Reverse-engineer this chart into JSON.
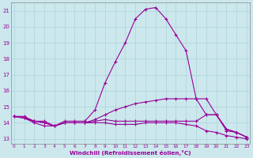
{
  "xlabel": "Windchill (Refroidissement éolien,°C)",
  "background_color": "#cce8ed",
  "grid_color": "#aad4db",
  "line_color": "#990099",
  "x_hours": [
    0,
    1,
    2,
    3,
    4,
    5,
    6,
    7,
    8,
    9,
    10,
    11,
    12,
    13,
    14,
    15,
    16,
    17,
    18,
    19,
    20,
    21,
    22,
    23
  ],
  "ylim": [
    12.7,
    21.5
  ],
  "yticks": [
    13,
    14,
    15,
    16,
    17,
    18,
    19,
    20,
    21
  ],
  "xlim": [
    -0.3,
    23.3
  ],
  "series": [
    [
      14.4,
      14.4,
      14.1,
      14.1,
      13.8,
      14.1,
      14.1,
      14.1,
      14.8,
      16.5,
      17.8,
      19.0,
      20.5,
      21.1,
      21.2,
      20.5,
      19.5,
      18.5,
      15.5,
      14.5,
      14.5,
      13.5,
      13.4,
      13.1
    ],
    [
      14.4,
      14.3,
      14.1,
      14.0,
      13.8,
      14.0,
      14.0,
      14.0,
      14.2,
      14.5,
      14.8,
      15.0,
      15.2,
      15.3,
      15.4,
      15.5,
      15.5,
      15.5,
      15.5,
      15.5,
      14.5,
      13.6,
      13.4,
      13.1
    ],
    [
      14.4,
      14.3,
      14.1,
      14.0,
      13.8,
      14.0,
      14.0,
      14.0,
      14.1,
      14.2,
      14.1,
      14.1,
      14.1,
      14.1,
      14.1,
      14.1,
      14.1,
      14.1,
      14.1,
      14.5,
      14.5,
      13.6,
      13.4,
      13.1
    ],
    [
      14.4,
      14.3,
      14.0,
      13.8,
      13.8,
      14.0,
      14.0,
      14.0,
      14.0,
      14.0,
      13.9,
      13.9,
      13.9,
      14.0,
      14.0,
      14.0,
      14.0,
      13.9,
      13.8,
      13.5,
      13.4,
      13.2,
      13.1,
      13.0
    ]
  ]
}
